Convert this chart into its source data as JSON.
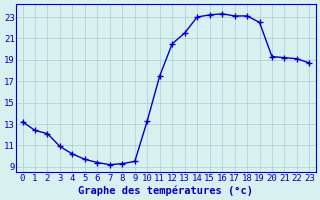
{
  "x": [
    0,
    1,
    2,
    3,
    4,
    5,
    6,
    7,
    8,
    9,
    10,
    11,
    12,
    13,
    14,
    15,
    16,
    17,
    18,
    19,
    20,
    21,
    22,
    23
  ],
  "y": [
    13.2,
    12.4,
    12.1,
    10.9,
    10.2,
    9.7,
    9.4,
    9.2,
    9.3,
    9.5,
    13.3,
    17.5,
    20.5,
    21.5,
    23.0,
    23.2,
    23.3,
    23.1,
    23.1,
    22.5,
    19.3,
    19.2,
    19.1,
    18.7
  ],
  "line_color": "#0000cc",
  "marker": "+",
  "markersize": 4,
  "linewidth": 1.0,
  "bg_color": "#d8f0f0",
  "grid_color": "#aacece",
  "xlabel": "Graphe des températures (°c)",
  "xlabel_fontsize": 7.5,
  "ylabel_ticks": [
    9,
    11,
    13,
    15,
    17,
    19,
    21,
    23
  ],
  "xlim": [
    -0.5,
    23.5
  ],
  "ylim": [
    8.5,
    24.2
  ],
  "xtick_labels": [
    "0",
    "1",
    "2",
    "3",
    "4",
    "5",
    "6",
    "7",
    "8",
    "9",
    "10",
    "11",
    "12",
    "13",
    "14",
    "15",
    "16",
    "17",
    "18",
    "19",
    "20",
    "21",
    "22",
    "23"
  ],
  "tick_fontsize": 6.5,
  "label_color": "#0000cc",
  "spine_color": "#0000cc"
}
